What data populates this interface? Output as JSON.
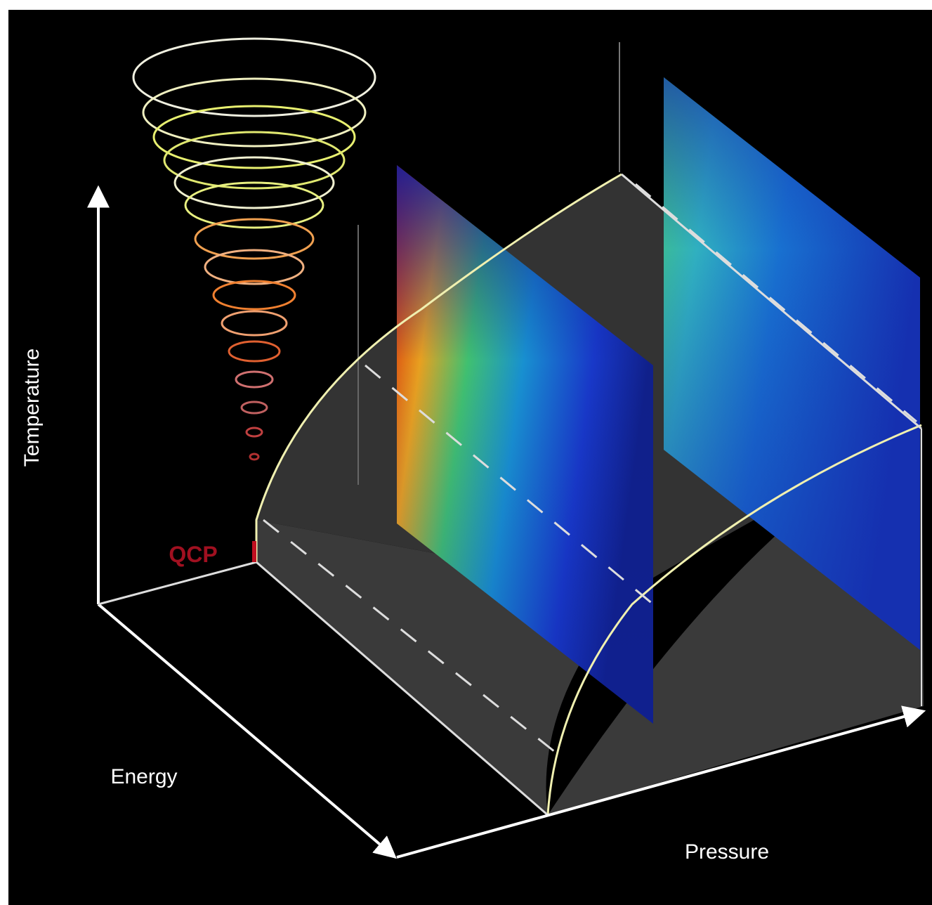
{
  "axes": {
    "temperature": "Temperature",
    "energy": "Energy",
    "pressure": "Pressure"
  },
  "point": {
    "label": "QCP"
  }
}
